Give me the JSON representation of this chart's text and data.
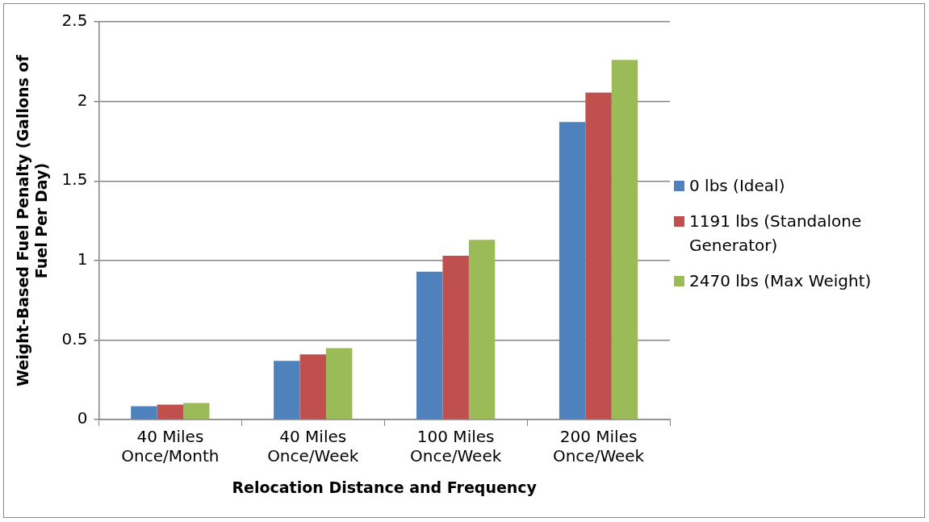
{
  "chart_data": {
    "type": "bar",
    "xlabel": "Relocation Distance and Frequency",
    "ylabel": "Weight-Based Fuel Penalty (Gallons of Fuel Per Day)",
    "categories": [
      "40 Miles Once/Month",
      "40 Miles Once/Week",
      "100 Miles Once/Week",
      "200 Miles Once/Week"
    ],
    "series": [
      {
        "name": "0 lbs (Ideal)",
        "color": "#4f81bd",
        "values": [
          0.085,
          0.37,
          0.93,
          1.87
        ]
      },
      {
        "name": "1191 lbs (Standalone Generator)",
        "color": "#c0504d",
        "values": [
          0.095,
          0.41,
          1.03,
          2.055
        ]
      },
      {
        "name": "2470 lbs (Max Weight)",
        "color": "#9bbb59",
        "values": [
          0.105,
          0.45,
          1.13,
          2.26
        ]
      }
    ],
    "ylim": [
      0,
      2.5
    ],
    "yticks": [
      0,
      0.5,
      1,
      1.5,
      2,
      2.5
    ],
    "grid": "y",
    "legend": "right"
  }
}
